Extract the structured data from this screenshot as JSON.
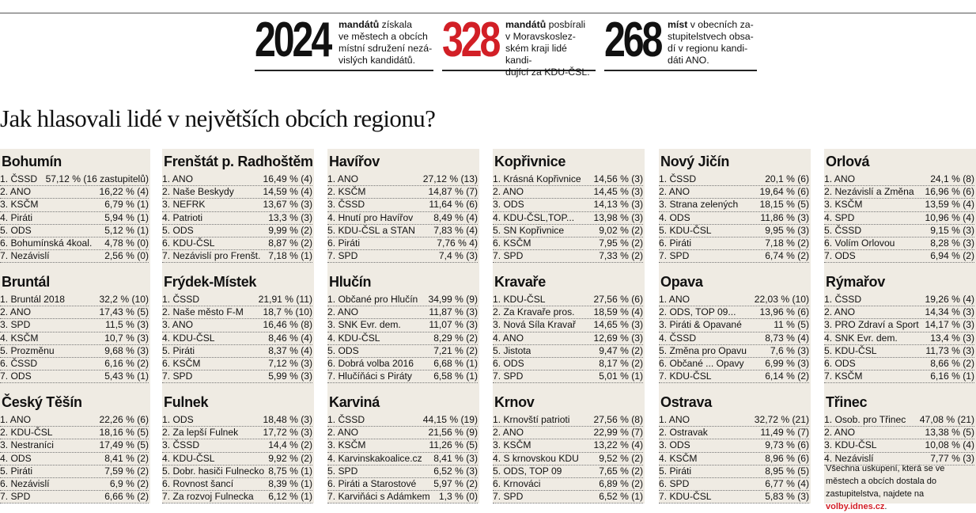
{
  "stats": [
    {
      "number": "2024",
      "number_color": "#111111",
      "bold": "mandátů",
      "text": " získala ve městech a obcích místní sdružení nezávislých kandidátů.",
      "lines": [
        "<b>mandátů</b> získala",
        "ve městech a obcích",
        "místní sdružení nezá-",
        "vislých kandidátů."
      ]
    },
    {
      "number": "328",
      "number_color": "#d21f26",
      "bold": "mandátů",
      "text": " posbírali v Moravskoslezském kraji lidé kandidující za KDU-ČSL.",
      "lines": [
        "<b>mandátů</b> posbírali",
        "v Moravskoslez-",
        "ském kraji lidé kandi-",
        "dující za KDU-ČSL."
      ]
    },
    {
      "number": "268",
      "number_color": "#111111",
      "bold": "míst",
      "text": " v obecních zastupitelstvech obsadí v regionu kandidáti ANO.",
      "lines": [
        "<b>míst</b> v obecních za-",
        "stupitelstvech obsa-",
        "dí v regionu kandi-",
        "dáti ANO."
      ]
    }
  ],
  "headline": "Jak hlasovali lidé v největších obcích regionu?",
  "columns": [
    [
      {
        "city": "Bohumín",
        "rows": [
          [
            "1. ČSSD",
            "57,12 % (16 zastupitelů)"
          ],
          [
            "2. ANO",
            "16,22 % (4)"
          ],
          [
            "3. KSČM",
            "6,79 % (1)"
          ],
          [
            "4. Piráti",
            "5,94 % (1)"
          ],
          [
            "5. ODS",
            "5,12 % (1)"
          ],
          [
            "6. Bohumínská 4koal.",
            "4,78 % (0)"
          ],
          [
            "7. Nezávislí",
            "2,56 % (0)"
          ]
        ]
      },
      {
        "city": "Bruntál",
        "rows": [
          [
            "1. Bruntál 2018",
            "32,2 % (10)"
          ],
          [
            "2. ANO",
            "17,43 % (5)"
          ],
          [
            "3. SPD",
            "11,5 % (3)"
          ],
          [
            "4. KSČM",
            "10,7 % (3)"
          ],
          [
            "5. Prozměnu",
            "9,68 % (3)"
          ],
          [
            "6. ČSSD",
            "6,16 % (2)"
          ],
          [
            "7. ODS",
            "5,43 % (1)"
          ]
        ]
      },
      {
        "city": "Český Těšín",
        "rows": [
          [
            "1. ANO",
            "22,26 % (6)"
          ],
          [
            "2. KDU-ČSL",
            "18,16 % (5)"
          ],
          [
            "3. Nestraníci",
            "17,49 % (5)"
          ],
          [
            "4. ODS",
            "8,41 % (2)"
          ],
          [
            "5. Piráti",
            "7,59 % (2)"
          ],
          [
            "6. Nezávislí",
            "6,9 % (2)"
          ],
          [
            "7. SPD",
            "6,66 % (2)"
          ]
        ]
      }
    ],
    [
      {
        "city": "Frenštát p. Radhoštěm",
        "rows": [
          [
            "1. ANO",
            "16,49 % (4)"
          ],
          [
            "2. Naše Beskydy",
            "14,59 % (4)"
          ],
          [
            "3. NEFRK",
            "13,67 % (3)"
          ],
          [
            "4. Patrioti",
            "13,3 % (3)"
          ],
          [
            "5. ODS",
            "9,99 % (2)"
          ],
          [
            "6. KDU-ČSL",
            "8,87 % (2)"
          ],
          [
            "7. Nezávislí pro Frenšt.",
            "7,18 % (1)"
          ]
        ]
      },
      {
        "city": "Frýdek-Místek",
        "rows": [
          [
            "1. ČSSD",
            "21,91 % (11)"
          ],
          [
            "2. Naše město F-M",
            "18,7 % (10)"
          ],
          [
            "3. ANO",
            "16,46 % (8)"
          ],
          [
            "4. KDU-ČSL",
            "8,46 % (4)"
          ],
          [
            "5. Piráti",
            "8,37 % (4)"
          ],
          [
            "6. KSČM",
            "7,12 % (3)"
          ],
          [
            "7. SPD",
            "5,99 % (3)"
          ]
        ]
      },
      {
        "city": "Fulnek",
        "rows": [
          [
            "1. ODS",
            "18,48 % (3)"
          ],
          [
            "2. Za lepší Fulnek",
            "17,72 % (3)"
          ],
          [
            "3. ČSSD",
            "14,4 % (2)"
          ],
          [
            "4. KDU-ČSL",
            "9,92 % (2)"
          ],
          [
            "5. Dobr. hasiči Fulnecko",
            "8,75 % (1)"
          ],
          [
            "6. Rovnost šancí",
            "8,39 % (1)"
          ],
          [
            "7. Za rozvoj Fulnecka",
            "6,12 % (1)"
          ]
        ]
      }
    ],
    [
      {
        "city": "Havířov",
        "rows": [
          [
            "1. ANO",
            "27,12 % (13)"
          ],
          [
            "2. KSČM",
            "14,87 % (7)"
          ],
          [
            "3. ČSSD",
            "11,64 % (6)"
          ],
          [
            "4. Hnutí pro Havířov",
            "8,49 % (4)"
          ],
          [
            "5. KDU-ČSL a STAN",
            "7,83 % (4)"
          ],
          [
            "6. Piráti",
            "7,76 % 4)"
          ],
          [
            "7. SPD",
            "7,4 % (3)"
          ]
        ]
      },
      {
        "city": "Hlučín",
        "rows": [
          [
            "1. Občané pro Hlučín",
            "34,99 % (9)"
          ],
          [
            "2. ANO",
            "11,87 % (3)"
          ],
          [
            "3. SNK Evr. dem.",
            "11,07 % (3)"
          ],
          [
            "4. KDU-ČSL",
            "8,29 % (2)"
          ],
          [
            "5. ODS",
            "7,21 % (2)"
          ],
          [
            "6. Dobrá volba 2016",
            "6,68 % (1)"
          ],
          [
            "7. Hlučíňáci s Piráty",
            "6,58 % (1)"
          ]
        ]
      },
      {
        "city": "Karviná",
        "rows": [
          [
            "1. ČSSD",
            "44,15 % (19)"
          ],
          [
            "2. ANO",
            "21,56 % (9)"
          ],
          [
            "3. KSČM",
            "11,26 % (5)"
          ],
          [
            "4. Karvinskakoalice.cz",
            "8,41 % (3)"
          ],
          [
            "5. SPD",
            "6,52 % (3)"
          ],
          [
            "6. Piráti a Starostové",
            "5,97 % (2)"
          ],
          [
            "7. Karviňáci s Adámkem",
            "1,3 % (0)"
          ]
        ]
      }
    ],
    [
      {
        "city": "Kopřivnice",
        "rows": [
          [
            "1. Krásná Kopřivnice",
            "14,56 % (3)"
          ],
          [
            "2. ANO",
            "14,45 % (3)"
          ],
          [
            "3. ODS",
            "14,13 % (3)"
          ],
          [
            "4. KDU-ČSL,TOP...",
            "13,98 % (3)"
          ],
          [
            "5. SN Kopřivnice",
            "9,02 % (2)"
          ],
          [
            "6. KSČM",
            "7,95 % (2)"
          ],
          [
            "7. SPD",
            "7,33 % (2)"
          ]
        ]
      },
      {
        "city": "Kravaře",
        "rows": [
          [
            "1. KDU-ČSL",
            "27,56 % (6)"
          ],
          [
            "2. Za Kravaře pros.",
            "18,59 % (4)"
          ],
          [
            "3. Nová Síla Kravař",
            "14,65 % (3)"
          ],
          [
            "4. ANO",
            "12,69 % (3)"
          ],
          [
            "5. Jistota",
            "9,47 % (2)"
          ],
          [
            "6. ODS",
            "8,17 % (2)"
          ],
          [
            "7. SPD",
            "5,01 % (1)"
          ]
        ]
      },
      {
        "city": "Krnov",
        "rows": [
          [
            "1. Krnovští patrioti",
            "27,56 % (8)"
          ],
          [
            "2. ANO",
            "22,99 % (7)"
          ],
          [
            "3. KSČM",
            "13,22 % (4)"
          ],
          [
            "4. S krnovskou KDU",
            "9,52 % (2)"
          ],
          [
            "5. ODS, TOP 09",
            "7,65 % (2)"
          ],
          [
            "6. Krnováci",
            "6,89 % (2)"
          ],
          [
            "7. SPD",
            "6,52 % (1)"
          ]
        ]
      }
    ],
    [
      {
        "city": "Nový Jičín",
        "rows": [
          [
            "1. ČSSD",
            "20,1 % (6)"
          ],
          [
            "2. ANO",
            "19,64 % (6)"
          ],
          [
            "3. Strana zelených",
            "18,15 % (5)"
          ],
          [
            "4. ODS",
            "11,86 % (3)"
          ],
          [
            "5. KDU-ČSL",
            "9,95 % (3)"
          ],
          [
            "6. Piráti",
            "7,18 % (2)"
          ],
          [
            "7. SPD",
            "6,74 % (2)"
          ]
        ]
      },
      {
        "city": "Opava",
        "rows": [
          [
            "1. ANO",
            "22,03 % (10)"
          ],
          [
            "2. ODS, TOP 09...",
            "13,96 % (6)"
          ],
          [
            "3. Piráti & Opavané",
            "11 % (5)"
          ],
          [
            "4. ČSSD",
            "8,73 % (4)"
          ],
          [
            "5. Změna pro Opavu",
            "7,6 % (3)"
          ],
          [
            "6. Občané ... Opavy",
            "6,99 % (3)"
          ],
          [
            "7. KDU-ČSL",
            "6,14 % (2)"
          ]
        ]
      },
      {
        "city": "Ostrava",
        "rows": [
          [
            "1. ANO",
            "32,72 % (21)"
          ],
          [
            "2. Ostravak",
            "11,49 % (7)"
          ],
          [
            "3. ODS",
            "9,73 % (6)"
          ],
          [
            "4. KSČM",
            "8,96 % (6)"
          ],
          [
            "5. Piráti",
            "8,95 % (5)"
          ],
          [
            "6. SPD",
            "6,77 % (4)"
          ],
          [
            "7. KDU-ČSL",
            "5,83 % (3)"
          ]
        ]
      }
    ],
    [
      {
        "city": "Orlová",
        "rows": [
          [
            "1. ANO",
            "24,1 % (8)"
          ],
          [
            "2. Nezávislí a Změna",
            "16,96 % (6)"
          ],
          [
            "3. KSČM",
            "13,59 % (4)"
          ],
          [
            "4. SPD",
            "10,96 % (4)"
          ],
          [
            "5. ČSSD",
            "9,15 % (3)"
          ],
          [
            "6. Volím Orlovou",
            "8,28 % (3)"
          ],
          [
            "7. ODS",
            "6,94 % (2)"
          ]
        ]
      },
      {
        "city": "Rýmařov",
        "rows": [
          [
            "1. ČSSD",
            "19,26 % (4)"
          ],
          [
            "2. ANO",
            "14,34 % (3)"
          ],
          [
            "3. PRO Zdraví a Sport",
            "14,17 % (3)"
          ],
          [
            "4. SNK Evr. dem.",
            "13,4 % (3)"
          ],
          [
            "5. KDU-ČSL",
            "11,73 % (3)"
          ],
          [
            "6. ODS",
            "8,66 % (2)"
          ],
          [
            "7. KSČM",
            "6,16 % (1)"
          ]
        ]
      },
      {
        "city": "Třinec",
        "rows": [
          [
            "1. Osob. pro Třinec",
            "47,08 % (21)"
          ],
          [
            "2. ANO",
            "13,38 % (5)"
          ],
          [
            "3. KDU-ČSL",
            "10,08 % (4)"
          ],
          [
            "4. Nezávislí",
            "7,77 % (3)"
          ]
        ]
      }
    ]
  ],
  "note": {
    "text": "Všechna uskupení, která se ve městech a obcích dostala do zastupitelstva, najdete na ",
    "link": "volby.idnes.cz",
    "tail": "."
  },
  "colors": {
    "panel": "#efebe3",
    "accent": "#d21f26"
  }
}
